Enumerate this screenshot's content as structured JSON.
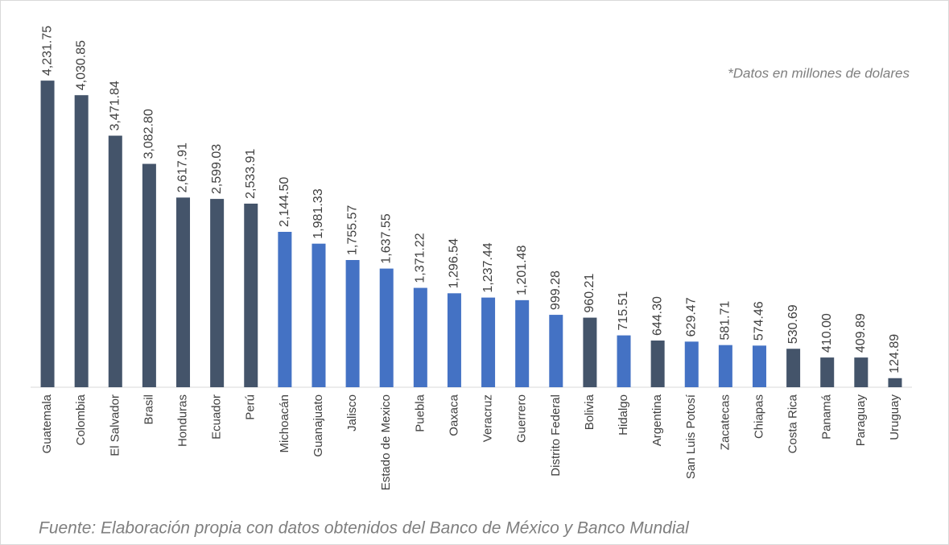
{
  "chart_data": {
    "type": "bar",
    "annotation": "*Datos en millones de dolares",
    "source": "Fuente: Elaboración propia con datos obtenidos del Banco de México y Banco Mundial",
    "categories": [
      "Guatemala",
      "Colombia",
      "El Salvador",
      "Brasil",
      "Honduras",
      "Ecuador",
      "Perú",
      "Michoacán",
      "Guanajuato",
      "Jalisco",
      "Estado de Mexico",
      "Puebla",
      "Oaxaca",
      "Veracruz",
      "Guerrero",
      "Distrito Federal",
      "Bolivia",
      "Hidalgo",
      "Argentina",
      "San Luis Potosí",
      "Zacatecas",
      "Chiapas",
      "Costa Rica",
      "Panamá",
      "Paraguay",
      "Uruguay"
    ],
    "values": [
      4231.75,
      4030.85,
      3471.84,
      3082.8,
      2617.91,
      2599.03,
      2533.91,
      2144.5,
      1981.33,
      1755.57,
      1637.55,
      1371.22,
      1296.54,
      1237.44,
      1201.48,
      999.28,
      960.21,
      715.51,
      644.3,
      629.47,
      581.71,
      574.46,
      530.69,
      410.0,
      409.89,
      124.89
    ],
    "value_labels": [
      "4,231.75",
      "4,030.85",
      "3,471.84",
      "3,082.80",
      "2,617.91",
      "2,599.03",
      "2,533.91",
      "2,144.50",
      "1,981.33",
      "1,755.57",
      "1,637.55",
      "1,371.22",
      "1,296.54",
      "1,237.44",
      "1,201.48",
      "999.28",
      "960.21",
      "715.51",
      "644.30",
      "629.47",
      "581.71",
      "574.46",
      "530.69",
      "410.00",
      "409.89",
      "124.89"
    ],
    "colors": [
      "#44546a",
      "#44546a",
      "#44546a",
      "#44546a",
      "#44546a",
      "#44546a",
      "#44546a",
      "#4472c4",
      "#4472c4",
      "#4472c4",
      "#4472c4",
      "#4472c4",
      "#4472c4",
      "#4472c4",
      "#4472c4",
      "#4472c4",
      "#44546a",
      "#4472c4",
      "#44546a",
      "#4472c4",
      "#4472c4",
      "#4472c4",
      "#44546a",
      "#44546a",
      "#44546a",
      "#44546a"
    ],
    "ylim": [
      0,
      4500
    ]
  }
}
